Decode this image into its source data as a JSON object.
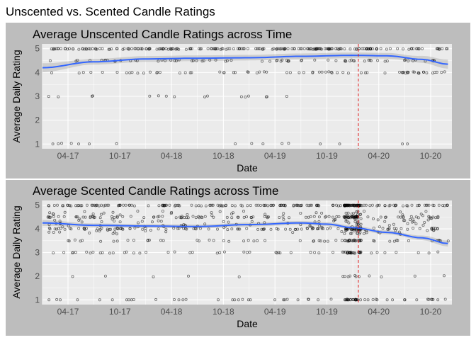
{
  "figure_title": "Unscented vs. Scented Candle Ratings",
  "colors": {
    "figure_background": "#ffffff",
    "panel_background": "#bdbdbd",
    "plot_background": "#ebebeb",
    "grid": "#ffffff",
    "points": "#000000",
    "smooth_line": "#3366ff",
    "smooth_band": "#999999",
    "reference_line": "#e31a1c"
  },
  "chart_data": [
    {
      "type": "scatter",
      "title": "Average Unscented Candle Ratings across Time",
      "xlabel": "Date",
      "ylabel": "Average Daily Rating",
      "x_ticks": [
        "04-17",
        "10-17",
        "04-18",
        "10-18",
        "04-19",
        "10-19",
        "04-20",
        "10-20"
      ],
      "y_ticks": [
        1,
        2,
        3,
        4,
        5
      ],
      "xlim": [
        "2017-01-01",
        "2020-12-15"
      ],
      "ylim": [
        0.8,
        5.2
      ],
      "grid": true,
      "reference_line": {
        "x": "2020-01-20",
        "style": "dashed",
        "color": "#e31a1c"
      },
      "smooth": {
        "x": [
          "2017-01-01",
          "2017-07-01",
          "2018-01-01",
          "2018-07-01",
          "2019-01-01",
          "2019-07-01",
          "2020-01-01",
          "2020-05-01",
          "2020-09-01",
          "2020-12-01"
        ],
        "y": [
          4.2,
          4.45,
          4.57,
          4.6,
          4.62,
          4.68,
          4.72,
          4.7,
          4.55,
          4.35
        ],
        "band_halfwidth": 0.12
      },
      "point_density": [
        {
          "rating": 5,
          "level": "dense"
        },
        {
          "rating": 4.5,
          "level": "moderate"
        },
        {
          "rating": 4,
          "level": "moderate"
        },
        {
          "rating": 3,
          "level": "sparse"
        },
        {
          "rating": 1,
          "level": "sparse"
        }
      ]
    },
    {
      "type": "scatter",
      "title": "Average Scented Candle Ratings across Time",
      "xlabel": "Date",
      "ylabel": "Average Daily Rating",
      "x_ticks": [
        "04-17",
        "10-17",
        "04-18",
        "10-18",
        "04-19",
        "10-19",
        "04-20",
        "10-20"
      ],
      "y_ticks": [
        1,
        2,
        3,
        4,
        5
      ],
      "xlim": [
        "2017-01-01",
        "2020-12-15"
      ],
      "ylim": [
        0.8,
        5.2
      ],
      "grid": true,
      "reference_line": {
        "x": "2020-01-20",
        "style": "dashed",
        "color": "#e31a1c"
      },
      "smooth": {
        "x": [
          "2017-01-01",
          "2017-07-01",
          "2018-01-01",
          "2018-07-01",
          "2019-01-01",
          "2019-07-01",
          "2019-10-01",
          "2020-01-01",
          "2020-05-01",
          "2020-09-01",
          "2020-12-01"
        ],
        "y": [
          4.25,
          4.15,
          4.12,
          4.1,
          4.18,
          4.25,
          4.2,
          4.05,
          3.85,
          3.62,
          3.38
        ],
        "band_halfwidth": 0.08
      },
      "point_density": [
        {
          "rating": 5,
          "level": "dense"
        },
        {
          "rating": 4.5,
          "level": "dense"
        },
        {
          "rating": 4,
          "level": "dense"
        },
        {
          "rating": 3.5,
          "level": "moderate"
        },
        {
          "rating": 3,
          "level": "moderate"
        },
        {
          "rating": 2,
          "level": "sparse"
        },
        {
          "rating": 1,
          "level": "moderate"
        }
      ]
    }
  ]
}
